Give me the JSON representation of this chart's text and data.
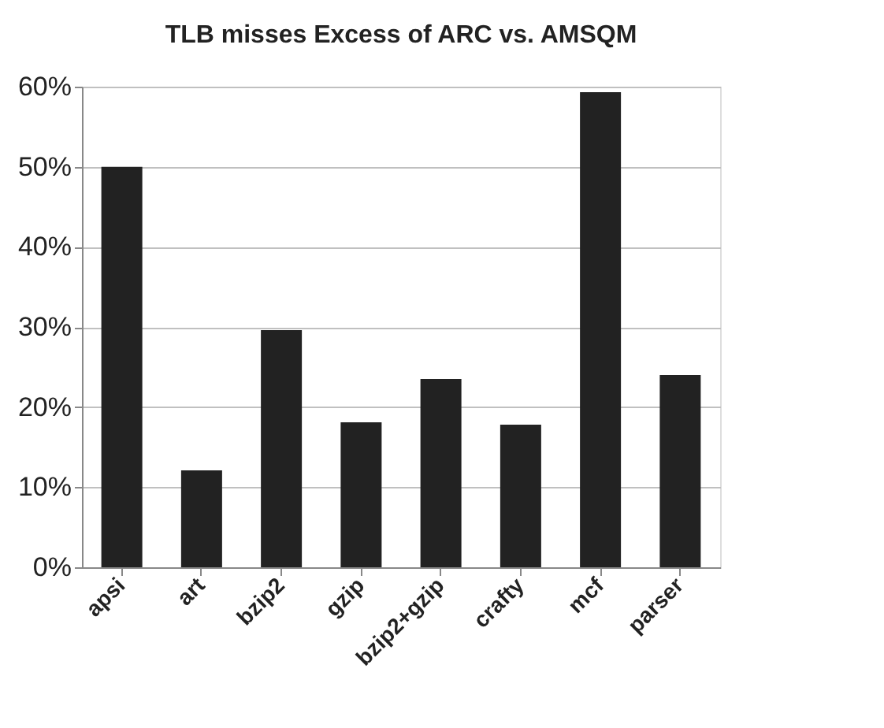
{
  "chart_data": {
    "type": "bar",
    "title": "TLB misses Excess of  ARC vs. AMSQM",
    "categories": [
      "apsi",
      "art",
      "bzip2",
      "gzip",
      "bzip2+gzip",
      "crafty",
      "mcf",
      "parser"
    ],
    "values": [
      50.0,
      12.1,
      29.6,
      18.1,
      23.5,
      17.8,
      59.3,
      24.0
    ],
    "color": "#222222",
    "ylim": [
      0,
      60
    ],
    "yticks": [
      {
        "value": 0,
        "label": "0%"
      },
      {
        "value": 10,
        "label": "10%"
      },
      {
        "value": 20,
        "label": "20%"
      },
      {
        "value": 30,
        "label": "30%"
      },
      {
        "value": 40,
        "label": "40%"
      },
      {
        "value": 50,
        "label": "50%"
      },
      {
        "value": 60,
        "label": "60%"
      }
    ],
    "grid": "y"
  }
}
